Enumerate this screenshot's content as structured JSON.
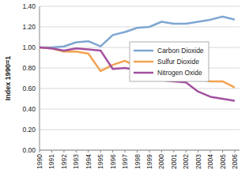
{
  "chart_data": {
    "type": "line",
    "y_label": "Index 1990=1",
    "x": [
      1990,
      1991,
      1992,
      1993,
      1994,
      1995,
      1996,
      1997,
      1998,
      1999,
      2000,
      2001,
      2002,
      2003,
      2004,
      2005,
      2006
    ],
    "series": [
      {
        "name": "Carbon Dioxide",
        "color": "#7fa6d2",
        "values": [
          1.0,
          1.0,
          1.01,
          1.05,
          1.06,
          1.01,
          1.12,
          1.15,
          1.19,
          1.2,
          1.25,
          1.23,
          1.23,
          1.25,
          1.27,
          1.3,
          1.27
        ]
      },
      {
        "name": "Sulfur Dioxide",
        "color": "#f2a24f",
        "values": [
          1.0,
          0.99,
          0.96,
          0.96,
          0.94,
          0.77,
          0.83,
          0.87,
          0.81,
          0.81,
          0.73,
          0.72,
          0.71,
          0.69,
          0.67,
          0.67,
          0.61
        ]
      },
      {
        "name": "Nitrogen Oxide",
        "color": "#a3509f",
        "values": [
          1.0,
          0.99,
          0.97,
          0.99,
          0.98,
          0.97,
          0.79,
          0.8,
          0.78,
          0.72,
          0.68,
          0.67,
          0.66,
          0.57,
          0.52,
          0.5,
          0.48
        ]
      }
    ],
    "xlim": [
      1990,
      2006
    ],
    "xticks": [
      1990,
      1991,
      1992,
      1993,
      1994,
      1995,
      1996,
      1997,
      1998,
      1999,
      2000,
      2001,
      2002,
      2003,
      2004,
      2005,
      2006
    ],
    "ylim": [
      0,
      1.4
    ],
    "yticks": [
      {
        "value": 0,
        "label": "0.00"
      },
      {
        "value": 0.2,
        "label": "0.20"
      },
      {
        "value": 0.4,
        "label": "0.40"
      },
      {
        "value": 0.6,
        "label": "0.60"
      },
      {
        "value": 0.8,
        "label": "0.80"
      },
      {
        "value": 1.0,
        "label": "1.00"
      },
      {
        "value": 1.2,
        "label": "1.20"
      },
      {
        "value": 1.4,
        "label": "1.40"
      }
    ],
    "grid": true,
    "legend": "upper right"
  }
}
